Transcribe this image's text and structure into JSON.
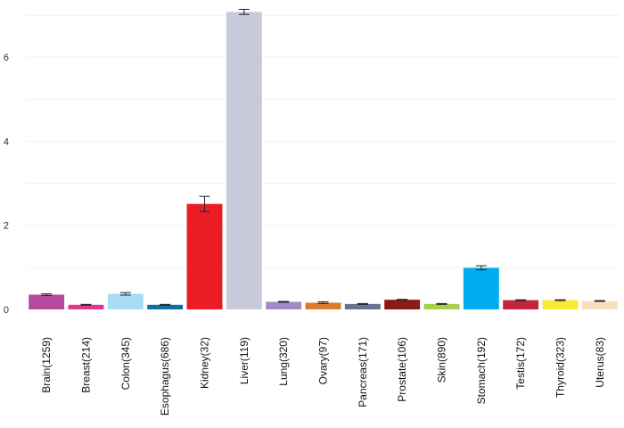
{
  "chart_data": {
    "type": "bar",
    "title": "",
    "xlabel": "",
    "ylabel": "",
    "ylim": [
      0,
      7.15
    ],
    "y_ticks": [
      0,
      2,
      4,
      6
    ],
    "grid": true,
    "legend": "none",
    "categories": [
      "Brain(1259)",
      "Breast(214)",
      "Colon(345)",
      "Esophagus(686)",
      "Kidney(32)",
      "Liver(119)",
      "Lung(320)",
      "Ovary(97)",
      "Pancreas(171)",
      "Prostate(106)",
      "Skin(890)",
      "Stomach(192)",
      "Testis(172)",
      "Thyroid(323)",
      "Uterus(83)"
    ],
    "values": [
      0.35,
      0.11,
      0.37,
      0.11,
      2.51,
      7.08,
      0.18,
      0.16,
      0.13,
      0.23,
      0.13,
      0.99,
      0.22,
      0.22,
      0.2
    ],
    "errors": [
      0.02,
      0.01,
      0.03,
      0.01,
      0.18,
      0.06,
      0.01,
      0.02,
      0.01,
      0.01,
      0.01,
      0.05,
      0.01,
      0.01,
      0.01
    ],
    "colors": [
      "#b5499c",
      "#e3348f",
      "#a6dcf6",
      "#0e6fa3",
      "#ec1c24",
      "#c8cad9",
      "#a48bc6",
      "#dd7b2b",
      "#687292",
      "#8b1a1a",
      "#a6cf4b",
      "#00aeef",
      "#c4253a",
      "#f7ea34",
      "#f7e0c2"
    ]
  }
}
